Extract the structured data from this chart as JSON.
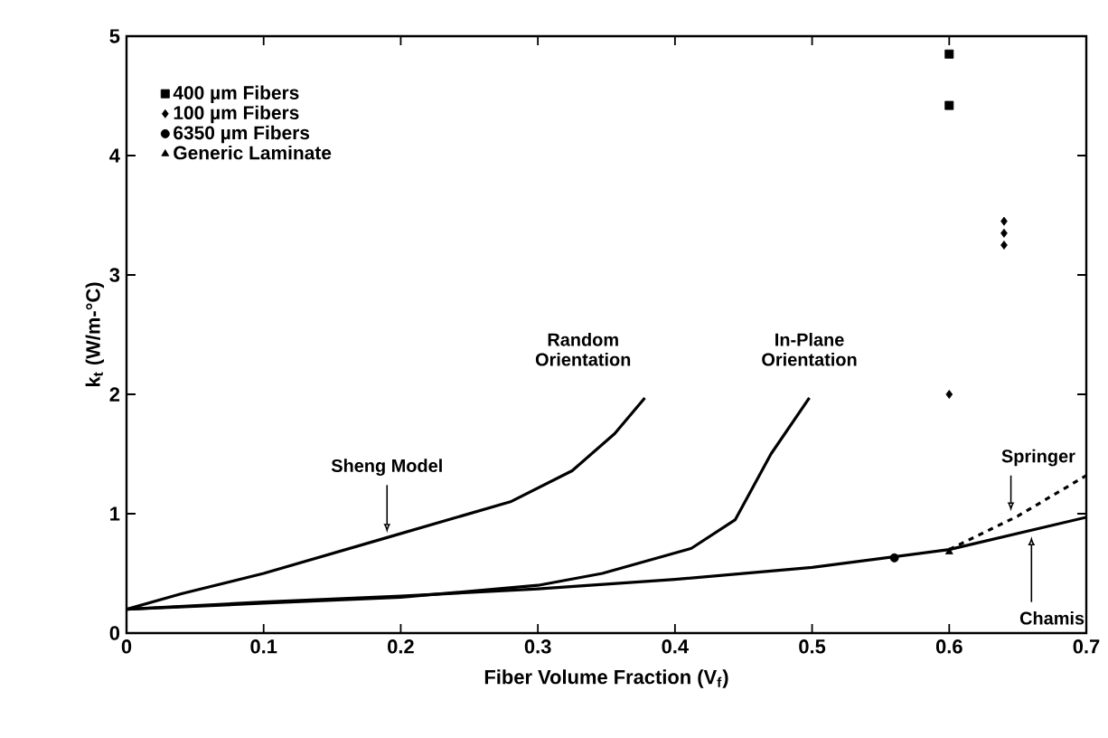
{
  "chart_data": {
    "type": "scatter",
    "xlabel": "Fiber Volume Fraction (V$_{f}$)",
    "ylabel": "k$_{t}$ (W/m-°C)",
    "xlim": [
      0,
      0.7
    ],
    "ylim": [
      0,
      5
    ],
    "xticks": [
      0,
      0.1,
      0.2,
      0.3,
      0.4,
      0.5,
      0.6,
      0.7
    ],
    "yticks": [
      0,
      1,
      2,
      3,
      4,
      5
    ],
    "grid": false,
    "legend": "top left",
    "series": [
      {
        "name": "400 µm Fibers",
        "color": "#000000",
        "marker": "square",
        "x": [
          0.6,
          0.6
        ],
        "values": [
          4.85,
          4.42
        ]
      },
      {
        "name": "100 µm Fibers",
        "color": "#000000",
        "marker": "diamond",
        "x": [
          0.64,
          0.64,
          0.64,
          0.6
        ],
        "values": [
          3.45,
          3.35,
          3.25,
          2.0
        ]
      },
      {
        "name": "6350 µm Fibers",
        "color": "#000000",
        "marker": "circle",
        "x": [
          0.56
        ],
        "values": [
          0.63
        ]
      },
      {
        "name": "Generic Laminate",
        "color": "#000000",
        "marker": "triangle",
        "x": [
          0.6
        ],
        "values": [
          0.68
        ]
      },
      {
        "type": "line",
        "color": "#000000",
        "marker": "none",
        "line_style": "solid",
        "x": [
          0,
          0.04,
          0.1,
          0.19,
          0.28,
          0.325,
          0.356,
          0.378
        ],
        "values": [
          0.2,
          0.33,
          0.5,
          0.8,
          1.1,
          1.36,
          1.67,
          1.97
        ]
      },
      {
        "type": "line",
        "color": "#000000",
        "marker": "none",
        "line_style": "solid",
        "x": [
          0,
          0.1,
          0.2,
          0.3,
          0.347,
          0.412,
          0.444,
          0.47,
          0.498
        ],
        "values": [
          0.2,
          0.25,
          0.3,
          0.4,
          0.5,
          0.71,
          0.95,
          1.5,
          1.97
        ]
      },
      {
        "type": "line",
        "color": "#000000",
        "marker": "none",
        "line_style": "solid",
        "x": [
          0,
          0.1,
          0.2,
          0.3,
          0.4,
          0.5,
          0.6,
          0.7
        ],
        "values": [
          0.2,
          0.26,
          0.31,
          0.37,
          0.45,
          0.55,
          0.7,
          0.97
        ]
      },
      {
        "type": "line",
        "color": "#000000",
        "marker": "none",
        "line_style": "dashed",
        "x": [
          0.6,
          0.65,
          0.7
        ],
        "values": [
          0.7,
          0.98,
          1.32
        ]
      }
    ],
    "annotations": [
      {
        "text": "Sheng Model",
        "x": 0.19,
        "y": 0.8
      },
      {
        "text": "Random Orientation",
        "x": 0.378,
        "y": 1.97
      },
      {
        "text": "In-Plane Orientation",
        "x": 0.498,
        "y": 1.97
      },
      {
        "text": "Springer",
        "x": 0.645,
        "y": 0.98
      },
      {
        "text": "Chamis",
        "x": 0.66,
        "y": 0.85
      }
    ]
  }
}
